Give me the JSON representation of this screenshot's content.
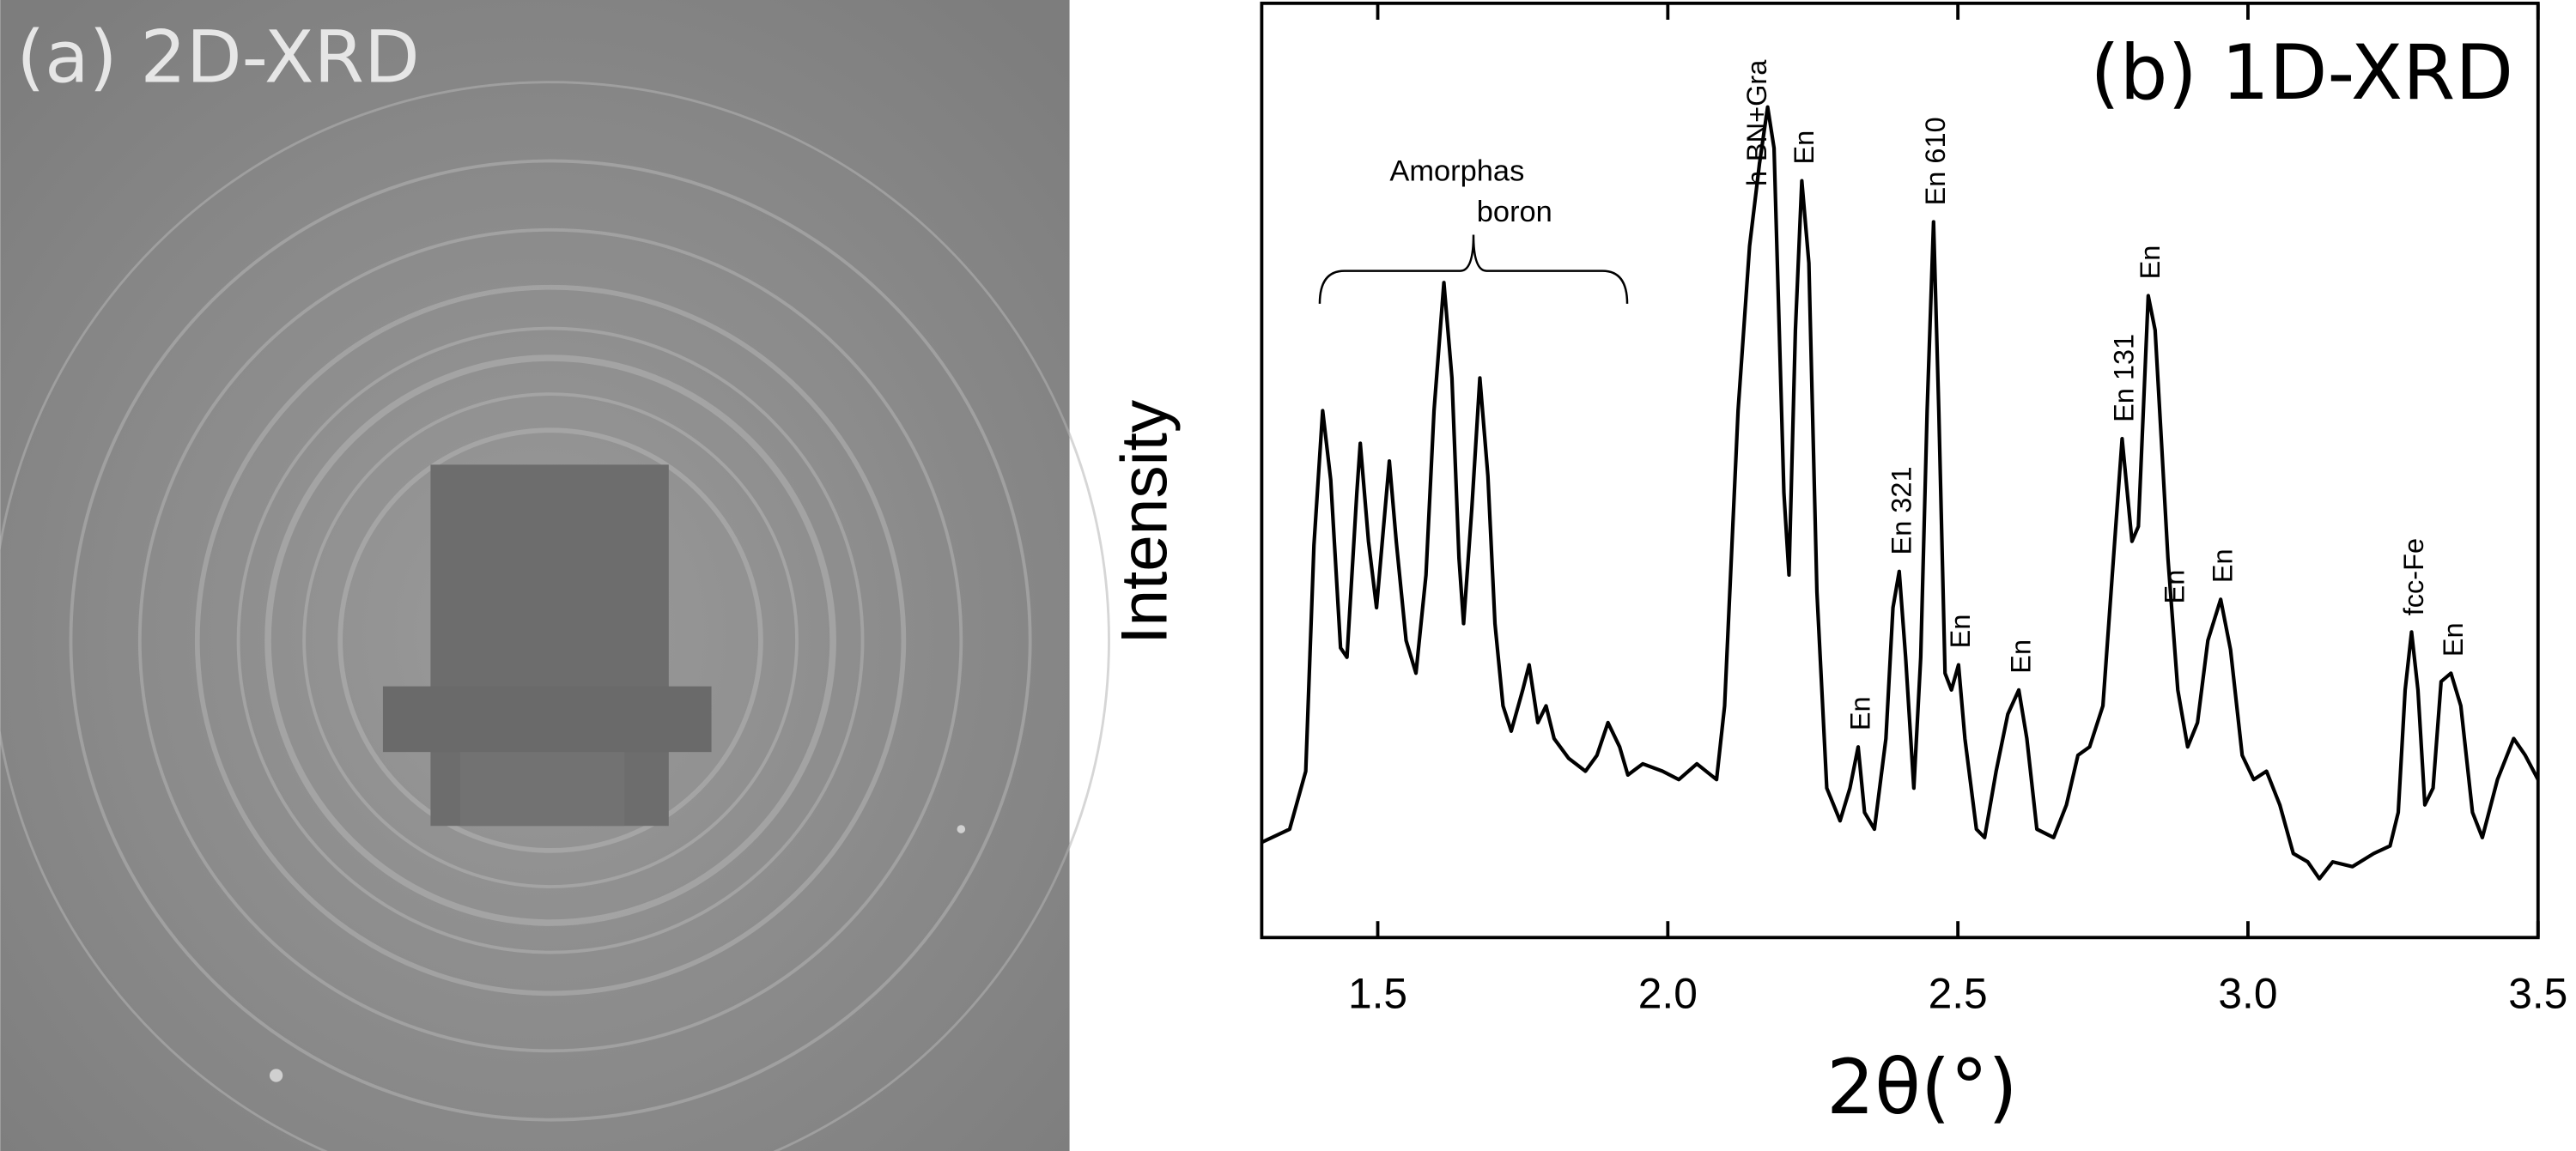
{
  "image_panel": {
    "label": "(a) 2D-XRD"
  },
  "chart_data": {
    "type": "line",
    "title": "(b) 1D-XRD",
    "xlabel": "2θ(°)",
    "ylabel": "Intensity",
    "color": "#000000",
    "xlim": [
      1.3,
      3.5
    ],
    "ylim": [
      0,
      100
    ],
    "xticks": [
      1.5,
      {
        "value": 2,
        "label": "2.0"
      },
      2.5,
      {
        "value": 3,
        "label": "3.0"
      },
      3.5
    ],
    "x": [
      1.3,
      1.348,
      1.376,
      1.39,
      1.405,
      1.419,
      1.436,
      1.447,
      1.464,
      1.47,
      1.484,
      1.498,
      1.51,
      1.52,
      1.532,
      1.549,
      1.566,
      1.583,
      1.597,
      1.614,
      1.628,
      1.64,
      1.648,
      1.662,
      1.676,
      1.69,
      1.702,
      1.716,
      1.73,
      1.75,
      1.761,
      1.776,
      1.79,
      1.804,
      1.829,
      1.858,
      1.878,
      1.897,
      1.917,
      1.931,
      1.957,
      1.991,
      2.019,
      2.05,
      2.084,
      2.098,
      2.121,
      2.141,
      2.158,
      2.172,
      2.183,
      2.2,
      2.209,
      2.22,
      2.231,
      2.243,
      2.257,
      2.274,
      2.297,
      2.314,
      2.328,
      2.339,
      2.356,
      2.376,
      2.388,
      2.399,
      2.41,
      2.424,
      2.436,
      2.447,
      2.458,
      2.467,
      2.478,
      2.489,
      2.501,
      2.512,
      2.532,
      2.546,
      2.566,
      2.586,
      2.605,
      2.619,
      2.636,
      2.665,
      2.687,
      2.707,
      2.727,
      2.75,
      2.766,
      2.783,
      2.8,
      2.811,
      2.828,
      2.84,
      2.851,
      2.862,
      2.879,
      2.896,
      2.913,
      2.931,
      2.953,
      2.97,
      2.99,
      3.01,
      3.032,
      3.055,
      3.078,
      3.103,
      3.123,
      3.146,
      3.18,
      3.217,
      3.245,
      3.259,
      3.271,
      3.282,
      3.293,
      3.305,
      3.319,
      3.333,
      3.35,
      3.367,
      3.387,
      3.404,
      3.43,
      3.458,
      3.478,
      3.5
    ],
    "values": [
      10.2,
      11.6,
      17.8,
      42,
      56.4,
      49,
      31,
      30,
      47.6,
      52.9,
      42.4,
      35.3,
      44,
      51,
      42.4,
      31.8,
      28.3,
      38.8,
      56.4,
      70.1,
      59.9,
      40.6,
      33.6,
      45.9,
      59.9,
      49.4,
      33.6,
      24.8,
      22.1,
      26.5,
      29.2,
      23,
      24.8,
      21.3,
      19.2,
      17.8,
      19.5,
      23,
      20.4,
      17.4,
      18.6,
      17.8,
      16.9,
      18.6,
      16.9,
      24.8,
      56.4,
      74,
      82.8,
      88.9,
      84.5,
      47.6,
      38.8,
      65,
      81,
      72.2,
      37,
      16,
      12.5,
      16,
      20.4,
      13.4,
      11.6,
      21.3,
      35.3,
      39.2,
      30,
      16,
      30,
      56.4,
      76.6,
      56.4,
      28.3,
      26.5,
      29.2,
      21.3,
      11.6,
      10.7,
      17.8,
      23.9,
      26.5,
      21.3,
      11.6,
      10.7,
      14.2,
      19.5,
      20.4,
      24.8,
      38.8,
      53.4,
      42.4,
      44,
      68.7,
      65,
      52.9,
      40.6,
      26.5,
      20.4,
      23,
      31.8,
      36.2,
      30.8,
      19.5,
      16.9,
      17.8,
      14.2,
      9,
      8.1,
      6.3,
      8.1,
      7.6,
      9,
      9.8,
      13.4,
      26.5,
      32.7,
      26.5,
      14.2,
      16,
      27.4,
      28.3,
      24.8,
      13.4,
      10.7,
      16.9,
      21.3,
      19.5,
      16.9
    ],
    "annotations": [
      {
        "text": "h-BN+Gra",
        "x": 2.15
      },
      {
        "text": "En",
        "x": 2.231
      },
      {
        "text": "En",
        "x": 2.328
      },
      {
        "text": "En 321",
        "x": 2.399
      },
      {
        "text": "En 610",
        "x": 2.458
      },
      {
        "text": "En",
        "x": 2.501
      },
      {
        "text": "En",
        "x": 2.605
      },
      {
        "text": "En 131",
        "x": 2.783
      },
      {
        "text": "En",
        "x": 2.828
      },
      {
        "text": "En",
        "x": 2.87
      },
      {
        "text": "En",
        "x": 2.953
      },
      {
        "text": "fcc-Fe",
        "x": 3.282
      },
      {
        "text": "En",
        "x": 3.35
      }
    ],
    "bracket": {
      "lines": [
        "Amorphas",
        "boron"
      ],
      "span": [
        1.4,
        1.93
      ]
    }
  }
}
